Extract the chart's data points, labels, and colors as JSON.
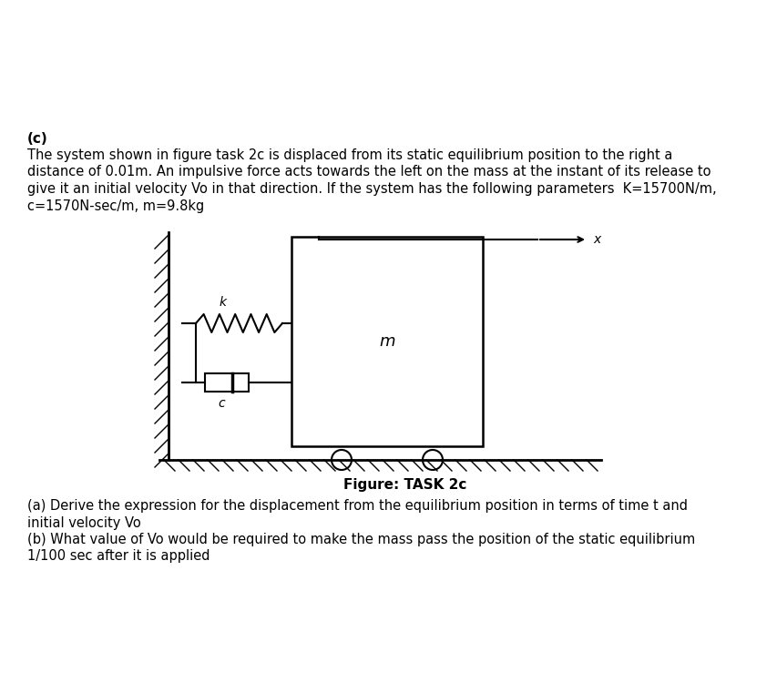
{
  "background_color": "#ffffff",
  "fig_width": 8.54,
  "fig_height": 7.5,
  "dpi": 100,
  "text_bold_c": "(c)",
  "text_line1": "The system shown in figure task 2c is displaced from its static equilibrium position to the right a",
  "text_line2": "distance of 0.01m. An impulsive force acts towards the left on the mass at the instant of its release to",
  "text_line3": "give it an initial velocity Vo in that direction. If the system has the following parameters  K=15700N/m,",
  "text_line4": "c=1570N-sec/m, m=9.8kg",
  "figure_caption": "Figure: TASK 2c",
  "question_a": "(a) Derive the expression for the displacement from the equilibrium position in terms of time t and",
  "question_a2": "initial velocity Vo",
  "question_b": "(b) What value of Vo would be required to make the mass pass the position of the static equilibrium",
  "question_b2": "1/100 sec after it is applied",
  "text_color": "#000000",
  "diagram_color": "#000000",
  "hatch_color": "#000000"
}
